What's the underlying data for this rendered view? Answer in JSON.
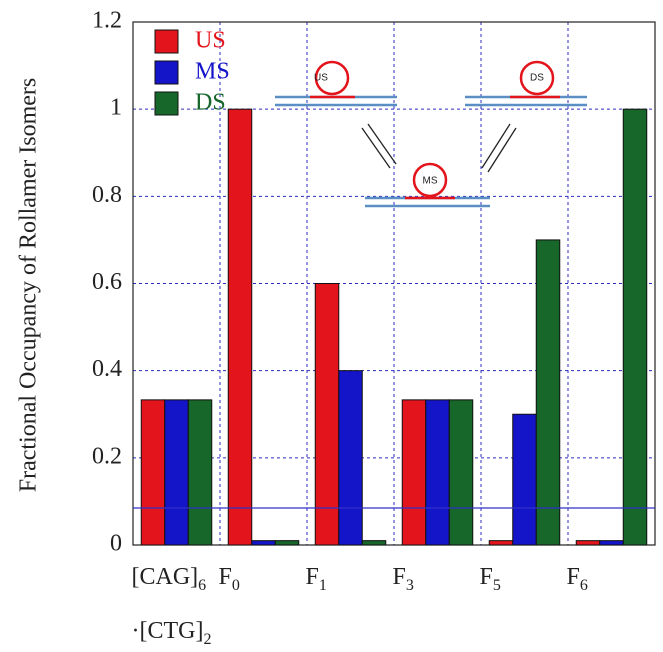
{
  "chart_data": {
    "type": "bar",
    "y_label": "Fractional Occupancy of Rollamer Isomers",
    "categories": [
      "[CAG]6·[CTG]2",
      "F0",
      "F1",
      "F3",
      "F5",
      "F6"
    ],
    "series": [
      {
        "name": "US",
        "color": "#e3141c",
        "values": [
          0.333,
          1.0,
          0.6,
          0.333,
          0.01,
          0.01
        ]
      },
      {
        "name": "MS",
        "color": "#1414c8",
        "values": [
          0.333,
          0.01,
          0.4,
          0.333,
          0.3,
          0.01
        ]
      },
      {
        "name": "DS",
        "color": "#17662a",
        "values": [
          0.333,
          0.01,
          0.01,
          0.333,
          0.7,
          1.0
        ]
      }
    ],
    "ylim": [
      0,
      1.2
    ],
    "yticks": [
      0,
      0.2,
      0.4,
      0.6,
      0.8,
      1,
      1.2
    ],
    "grid": true,
    "legend": "top-left",
    "annotations": [
      "US",
      "DS",
      "MS"
    ]
  }
}
